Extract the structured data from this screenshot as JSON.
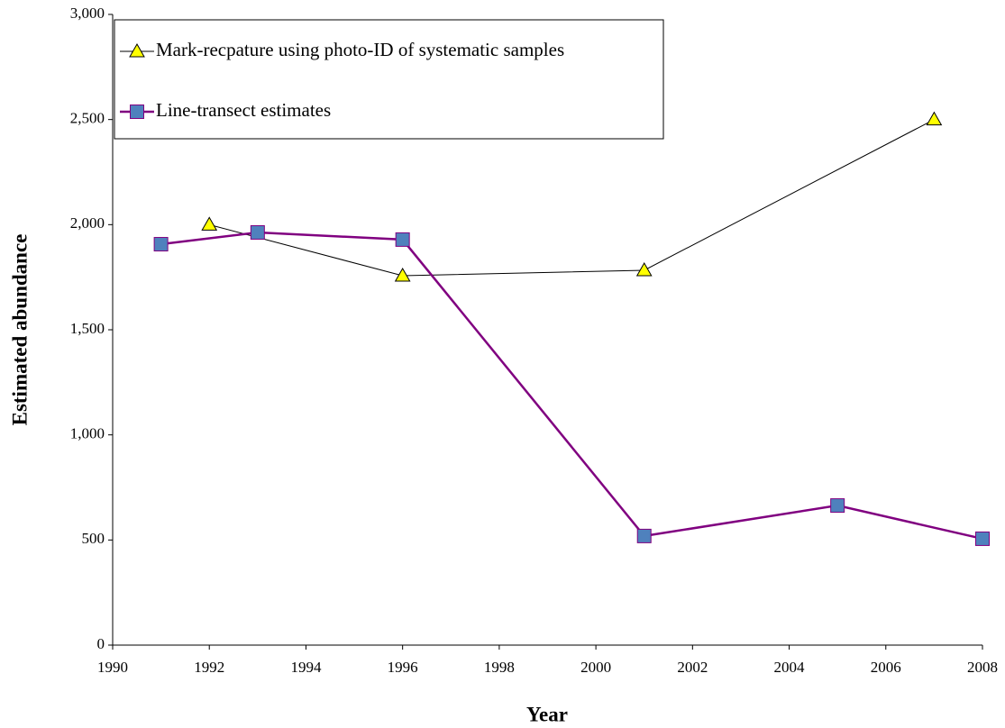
{
  "chart_data": {
    "type": "line",
    "x_label": "Year",
    "y_label": "Estimated abundance",
    "xlim": [
      1990,
      2008
    ],
    "xticks": [
      1990,
      1992,
      1994,
      1996,
      1998,
      2000,
      2002,
      2004,
      2006,
      2008
    ],
    "ylim": [
      0,
      3000
    ],
    "yticks": [
      0,
      {
        "value": 500,
        "label": "500"
      },
      {
        "value": 1000,
        "label": "1,000"
      },
      {
        "value": 1500,
        "label": "1,500"
      },
      {
        "value": 2000,
        "label": "2,000"
      },
      {
        "value": 2500,
        "label": "2,500"
      },
      {
        "value": 3000,
        "label": "3,000"
      }
    ],
    "grid": false,
    "legend_position": "top-left",
    "series": [
      {
        "name": "Mark-recpature using photo-ID of systematic samples",
        "color": "#000000",
        "marker": "triangle",
        "marker_color": "#ffff00",
        "x": [
          1992,
          1996,
          2001,
          2007
        ],
        "values": [
          2000,
          1757,
          1783,
          2500
        ]
      },
      {
        "name": "Line-transect estimates",
        "color": "#800080",
        "marker": "square",
        "marker_color": "#4f81bd",
        "x": [
          1991,
          1993,
          1996,
          2001,
          2005,
          2008
        ],
        "values": [
          1907,
          1963,
          1929,
          519,
          664,
          506
        ]
      }
    ]
  }
}
